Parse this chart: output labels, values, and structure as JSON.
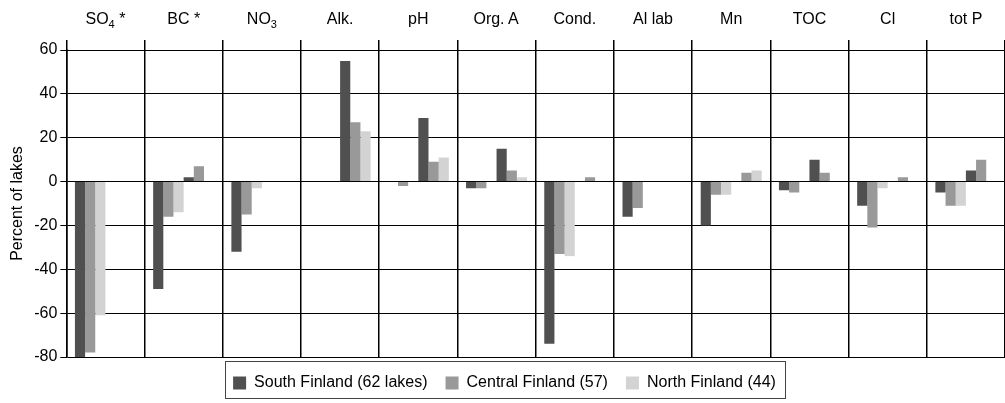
{
  "chart_data": {
    "type": "bar",
    "categories": [
      "SO$_{4}$ *",
      "BC *",
      "NO$_{3}$",
      "Alk.",
      "pH",
      "Org. A",
      "Cond.",
      "Al lab",
      "Mn",
      "TOC",
      "Cl",
      "tot P"
    ],
    "ylabel": "Percent of lakes",
    "ylim": [
      -80,
      60
    ],
    "yticks": [
      -80,
      -60,
      -40,
      -20,
      0,
      20,
      40,
      60
    ],
    "grid": true,
    "legend": "bottom",
    "series": [
      {
        "name": "South Finland (62 lakes)",
        "color": "#505050",
        "values": [
          -80,
          -49,
          -32,
          null,
          null,
          -3,
          -74,
          -16,
          -20,
          -4,
          -11,
          -5
        ]
      },
      {
        "name": "Central Finland (57)",
        "color": "#999999",
        "values": [
          -78,
          -16,
          -15,
          null,
          -2,
          -3,
          -33,
          -12,
          -6,
          -5,
          -21,
          -11
        ]
      },
      {
        "name": "North Finland (44)",
        "color": "#d3d3d3",
        "values": [
          -61,
          -14,
          -3,
          null,
          null,
          null,
          -34,
          null,
          -6,
          null,
          -3,
          -11
        ]
      },
      {
        "color": "#505050",
        "values": [
          null,
          2,
          null,
          55,
          29,
          15,
          null,
          null,
          null,
          10,
          null,
          5
        ]
      },
      {
        "color": "#999999",
        "values": [
          null,
          7,
          null,
          27,
          9,
          5,
          2,
          null,
          4,
          4,
          2,
          10
        ]
      },
      {
        "color": "#d3d3d3",
        "values": [
          null,
          null,
          null,
          23,
          11,
          2,
          null,
          null,
          5,
          null,
          null,
          null
        ]
      }
    ]
  }
}
